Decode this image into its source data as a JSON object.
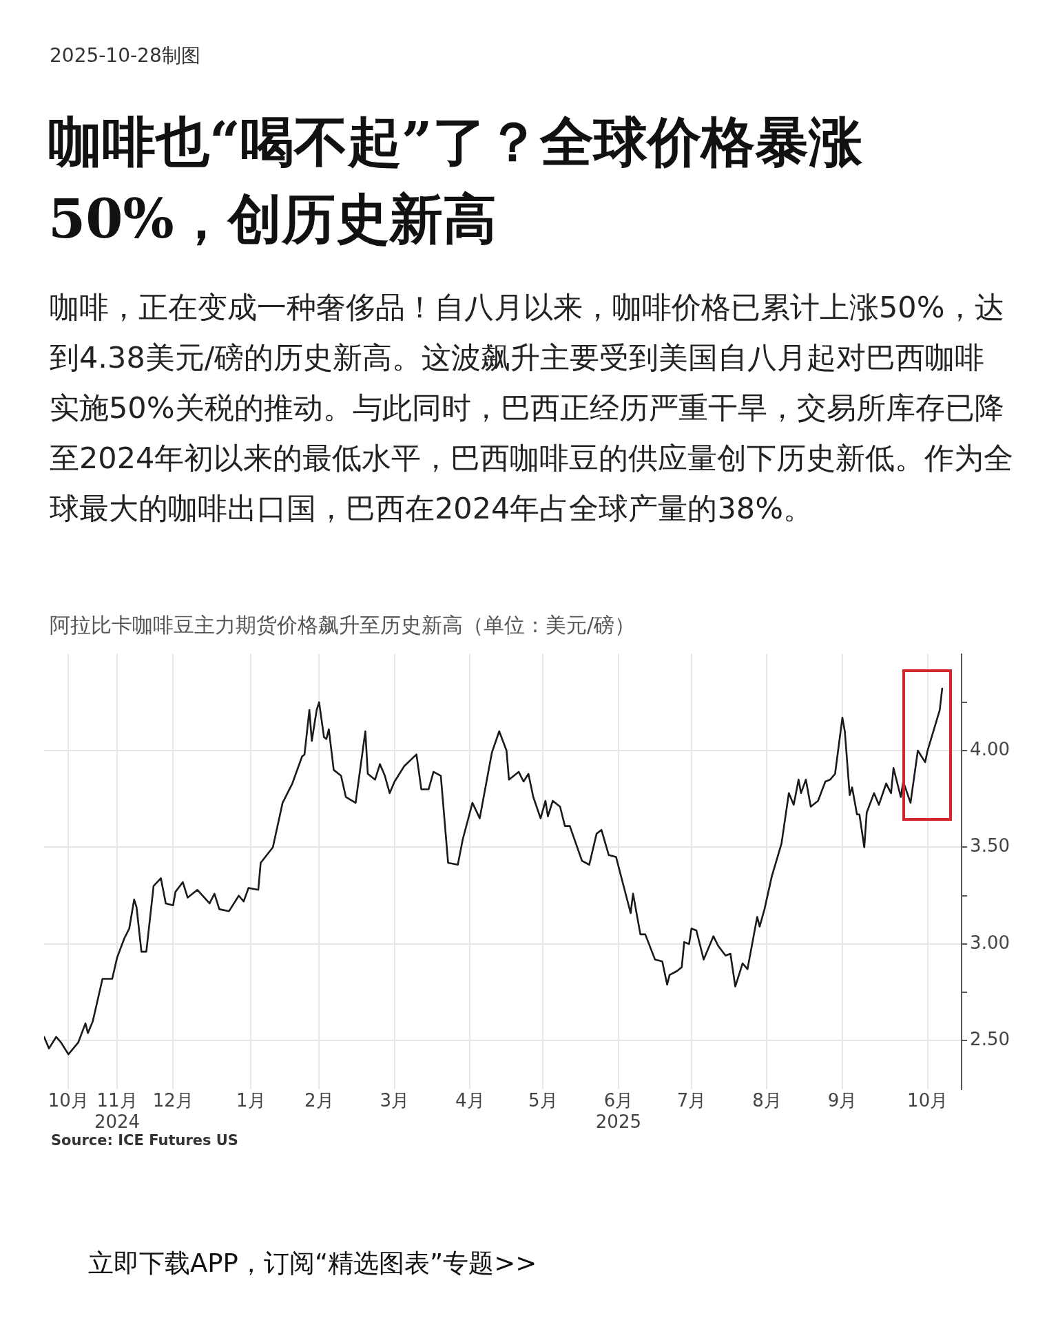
{
  "chart_data": {
    "type": "line",
    "title": "咖啡也“喝不起”了？全球价格暴涨50%，创历史新高",
    "subtitle": "咖啡，正在变成一种奢侈品！自八月以来，咖啡价格已累计上涨50%，达到4.38美元/磅的历史新高。这波飙升主要受到美国自八月起对巴西咖啡实施50%关税的推动。与此同时，巴西正经历严重干旱，交易所库存已降至2024年初以来的最低水平，巴西咖啡豆的供应量创下历史新低。作为全球最大的咖啡出口国，巴西在2024年占全球产量的38%。",
    "annotations": [
      "阿拉比卡咖啡豆主力期货价格飙升至历史新高（单位：美元/磅）",
      "2025-10-28制图",
      "Source: ICE Futures US",
      "立即下载APP，订阅“精选图表”专题>>"
    ],
    "x": [
      "2024-10-22",
      "2024-10-24",
      "2024-10-27",
      "2024-10-29",
      "2024-11-01",
      "2024-11-05",
      "2024-11-08",
      "2024-11-09",
      "2024-11-11",
      "2024-11-15",
      "2024-11-19",
      "2024-11-21",
      "2024-11-24",
      "2024-11-26",
      "2024-11-28",
      "2024-11-29",
      "2024-12-01",
      "2024-12-03",
      "2024-12-06",
      "2024-12-09",
      "2024-12-11",
      "2024-12-14",
      "2024-12-15",
      "2024-12-18",
      "2024-12-20",
      "2024-12-24",
      "2024-12-29",
      "2024-12-31",
      "2025-01-02",
      "2025-01-06",
      "2025-01-10",
      "2025-01-12",
      "2025-01-14",
      "2025-01-18",
      "2025-01-19",
      "2025-01-24",
      "2025-01-28",
      "2025-02-01",
      "2025-02-05",
      "2025-02-06",
      "2025-02-08",
      "2025-02-09",
      "2025-02-11",
      "2025-02-12",
      "2025-02-14",
      "2025-02-15",
      "2025-02-16",
      "2025-02-18",
      "2025-02-21",
      "2025-02-23",
      "2025-02-27",
      "2025-03-03",
      "2025-03-04",
      "2025-03-07",
      "2025-03-09",
      "2025-03-11",
      "2025-03-13",
      "2025-03-15",
      "2025-03-19",
      "2025-03-24",
      "2025-03-26",
      "2025-03-29",
      "2025-03-31",
      "2025-04-03",
      "2025-04-06",
      "2025-04-10",
      "2025-04-12",
      "2025-04-16",
      "2025-04-19",
      "2025-04-24",
      "2025-04-27",
      "2025-04-30",
      "2025-05-01",
      "2025-05-05",
      "2025-05-07",
      "2025-05-09",
      "2025-05-11",
      "2025-05-14",
      "2025-05-16",
      "2025-05-17",
      "2025-05-19",
      "2025-05-22",
      "2025-05-24",
      "2025-05-26",
      "2025-05-31",
      "2025-06-03",
      "2025-06-06",
      "2025-06-08",
      "2025-06-11",
      "2025-06-14",
      "2025-06-20",
      "2025-06-21",
      "2025-06-24",
      "2025-06-26",
      "2025-06-30",
      "2025-07-03",
      "2025-07-05",
      "2025-07-06",
      "2025-07-09",
      "2025-07-11",
      "2025-07-12",
      "2025-07-14",
      "2025-07-15",
      "2025-07-17",
      "2025-07-20",
      "2025-07-24",
      "2025-07-26",
      "2025-07-29",
      "2025-07-31",
      "2025-08-02",
      "2025-08-05",
      "2025-08-07",
      "2025-08-11",
      "2025-08-12",
      "2025-08-14",
      "2025-08-17",
      "2025-08-21",
      "2025-08-24",
      "2025-08-26",
      "2025-08-28",
      "2025-08-29",
      "2025-08-31",
      "2025-09-02",
      "2025-09-05",
      "2025-09-08",
      "2025-09-10",
      "2025-09-12",
      "2025-09-15",
      "2025-09-16",
      "2025-09-18",
      "2025-09-19",
      "2025-09-21",
      "2025-09-22",
      "2025-09-24",
      "2025-09-25",
      "2025-09-28",
      "2025-09-30",
      "2025-10-03",
      "2025-10-05",
      "2025-10-06",
      "2025-10-09",
      "2025-10-10",
      "2025-10-13",
      "2025-10-16",
      "2025-10-19",
      "2025-10-20",
      "2025-10-25",
      "2025-10-26"
    ],
    "values": [
      2.52,
      2.46,
      2.52,
      2.49,
      2.43,
      2.49,
      2.59,
      2.54,
      2.6,
      2.82,
      2.82,
      2.93,
      3.03,
      3.08,
      3.23,
      3.19,
      2.96,
      2.96,
      3.3,
      3.34,
      3.21,
      3.2,
      3.27,
      3.32,
      3.24,
      3.28,
      3.21,
      3.26,
      3.18,
      3.17,
      3.25,
      3.22,
      3.29,
      3.28,
      3.42,
      3.5,
      3.73,
      3.83,
      3.97,
      3.98,
      4.21,
      4.05,
      4.21,
      4.25,
      4.07,
      4.06,
      4.11,
      3.9,
      3.87,
      3.76,
      3.73,
      4.1,
      3.88,
      3.85,
      3.93,
      3.87,
      3.78,
      3.84,
      3.92,
      3.98,
      3.8,
      3.8,
      3.89,
      3.87,
      3.42,
      3.41,
      3.54,
      3.73,
      3.65,
      3.99,
      4.1,
      4.0,
      3.85,
      3.89,
      3.84,
      3.88,
      3.76,
      3.65,
      3.74,
      3.66,
      3.74,
      3.71,
      3.61,
      3.61,
      3.43,
      3.41,
      3.57,
      3.59,
      3.46,
      3.45,
      3.16,
      3.26,
      3.05,
      3.05,
      2.92,
      2.91,
      2.79,
      2.84,
      2.86,
      2.88,
      3.01,
      3.0,
      3.08,
      3.07,
      2.92,
      3.04,
      2.99,
      2.94,
      2.95,
      2.78,
      2.9,
      2.87,
      3.14,
      3.09,
      3.18,
      3.35,
      3.52,
      3.78,
      3.72,
      3.85,
      3.78,
      3.85,
      3.71,
      3.74,
      3.84,
      3.85,
      3.88,
      4.17,
      4.1,
      3.77,
      3.81,
      3.67,
      3.67,
      3.5,
      3.68,
      3.78,
      3.72,
      3.83,
      3.78,
      3.91,
      3.76,
      3.84,
      3.73,
      4.0,
      3.94,
      4.0,
      4.21,
      4.32
    ],
    "color": "#1a1a1a",
    "xlim": [
      "2024-10-22",
      "2025-11-03"
    ],
    "xticks": [
      {
        "value": "2024-11-01",
        "label": "10月"
      },
      {
        "value": "2024-11-21",
        "label": "11月\n2024"
      },
      {
        "value": "2024-12-14",
        "label": "12月"
      },
      {
        "value": "2025-01-15",
        "label": "1月"
      },
      {
        "value": "2025-02-12",
        "label": "2月"
      },
      {
        "value": "2025-03-15",
        "label": "3月"
      },
      {
        "value": "2025-04-15",
        "label": "4月"
      },
      {
        "value": "2025-05-15",
        "label": "5月"
      },
      {
        "value": "2025-06-15",
        "label": "6月\n2025"
      },
      {
        "value": "2025-07-15",
        "label": "7月"
      },
      {
        "value": "2025-08-15",
        "label": "8月"
      },
      {
        "value": "2025-09-15",
        "label": "9月"
      },
      {
        "value": "2025-10-20",
        "label": "10月"
      }
    ],
    "ylim": [
      2.25,
      4.5
    ],
    "yticks": [
      {
        "value": 2.5,
        "label": "2.50"
      },
      {
        "value": 2.75,
        "label": null
      },
      {
        "value": 3,
        "label": "3.00"
      },
      {
        "value": 3.25,
        "label": null
      },
      {
        "value": 3.5,
        "label": "3.50"
      },
      {
        "value": 4,
        "label": "4.00"
      },
      {
        "value": 4.25,
        "label": null
      }
    ],
    "grid": true,
    "marker": "none",
    "line_style": "solid"
  }
}
